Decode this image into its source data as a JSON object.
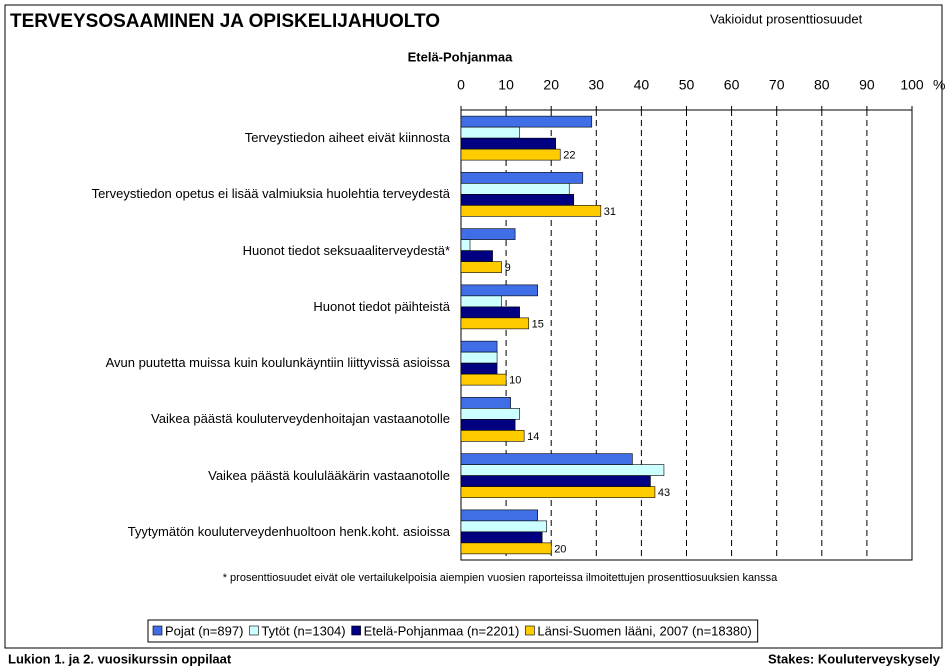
{
  "chart_data": {
    "type": "hbar",
    "title": "TERVEYSOSAAMINEN JA OPISKELIJAHUOLTO",
    "note_top": "Vakioidut prosenttiosuudet",
    "subtitle": "Etelä-Pohjanmaa",
    "x_unit": "%",
    "categories": [
      "Terveystiedon aiheet eivät kiinnosta",
      "Terveystiedon opetus ei lisää valmiuksia huolehtia terveydestä",
      "Huonot tiedot seksuaaliterveydestä*",
      "Huonot tiedot päihteistä",
      "Avun puutetta muissa kuin koulunkäyntiin liittyvissä asioissa",
      "Vaikea päästä kouluterveydenhoitajan vastaanotolle",
      "Vaikea päästä koululääkärin vastaanotolle",
      "Tyytymätön kouluterveydenhuoltoon henk.koht. asioissa"
    ],
    "series": [
      {
        "name": "Pojat (n=897)",
        "color": "#3f6ee6",
        "values": [
          29,
          27,
          12,
          17,
          8,
          11,
          38,
          17
        ]
      },
      {
        "name": "Tytöt (n=1304)",
        "color": "#ccffff",
        "values": [
          13,
          24,
          2,
          9,
          8,
          13,
          45,
          19
        ]
      },
      {
        "name": "Etelä-Pohjanmaa (n=2201)",
        "color": "#000080",
        "values": [
          21,
          25,
          7,
          13,
          8,
          12,
          42,
          18
        ]
      },
      {
        "name": "Länsi-Suomen lääni, 2007 (n=18380)",
        "color": "#ffcc00",
        "values": [
          22,
          31,
          9,
          15,
          10,
          14,
          43,
          20
        ],
        "show_values": true
      }
    ],
    "xlim": [
      0,
      100
    ],
    "xticks": [
      0,
      10,
      20,
      30,
      40,
      50,
      60,
      70,
      80,
      90,
      100
    ],
    "grid": true,
    "footnote": "* prosenttiosuudet eivät ole vertailukelpoisia aiempien vuosien raporteissa ilmoitettujen prosenttiosuuksien kanssa",
    "footer_left": "Lukion 1. ja 2. vuosikurssin oppilaat",
    "footer_right": "Stakes: Kouluterveyskysely"
  }
}
